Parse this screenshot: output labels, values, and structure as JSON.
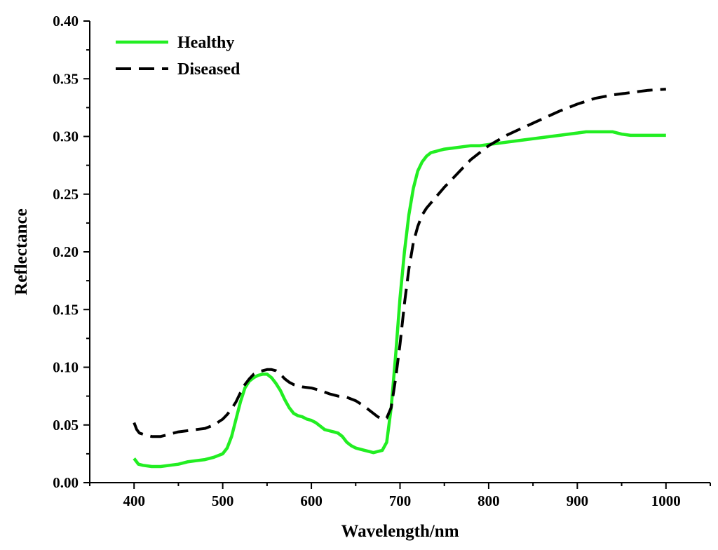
{
  "chart_data": {
    "type": "line",
    "xlabel": "Wavelength/nm",
    "ylabel": "Reflectance",
    "xlim": [
      350,
      1050
    ],
    "ylim": [
      0.0,
      0.4
    ],
    "xticks": [
      400,
      500,
      600,
      700,
      800,
      900,
      1000
    ],
    "yticks": [
      0.0,
      0.05,
      0.1,
      0.15,
      0.2,
      0.25,
      0.3,
      0.35,
      0.4
    ],
    "xtick_labels": [
      "400",
      "500",
      "600",
      "700",
      "800",
      "900",
      "1000"
    ],
    "ytick_labels": [
      "0.00",
      "0.05",
      "0.10",
      "0.15",
      "0.20",
      "0.25",
      "0.30",
      "0.35",
      "0.40"
    ],
    "grid": false,
    "legend_position": "top-left",
    "series": [
      {
        "name": "Healthy",
        "color": "#22ee22",
        "style": "solid",
        "x": [
          400,
          405,
          410,
          420,
          430,
          440,
          450,
          460,
          470,
          480,
          490,
          500,
          505,
          510,
          515,
          520,
          525,
          530,
          535,
          540,
          545,
          550,
          555,
          560,
          565,
          570,
          575,
          580,
          585,
          590,
          595,
          600,
          605,
          610,
          615,
          620,
          625,
          630,
          635,
          640,
          645,
          650,
          655,
          660,
          665,
          670,
          675,
          680,
          685,
          690,
          695,
          700,
          705,
          710,
          715,
          720,
          725,
          730,
          735,
          740,
          745,
          750,
          760,
          770,
          780,
          790,
          800,
          820,
          840,
          860,
          880,
          900,
          910,
          920,
          930,
          940,
          950,
          960,
          970,
          980,
          990,
          1000
        ],
        "y": [
          0.021,
          0.016,
          0.015,
          0.014,
          0.014,
          0.015,
          0.016,
          0.018,
          0.019,
          0.02,
          0.022,
          0.025,
          0.03,
          0.04,
          0.055,
          0.07,
          0.082,
          0.088,
          0.091,
          0.093,
          0.094,
          0.094,
          0.091,
          0.086,
          0.08,
          0.072,
          0.065,
          0.06,
          0.058,
          0.057,
          0.055,
          0.054,
          0.052,
          0.049,
          0.046,
          0.045,
          0.044,
          0.043,
          0.04,
          0.035,
          0.032,
          0.03,
          0.029,
          0.028,
          0.027,
          0.026,
          0.027,
          0.028,
          0.035,
          0.065,
          0.11,
          0.16,
          0.2,
          0.232,
          0.255,
          0.27,
          0.278,
          0.283,
          0.286,
          0.287,
          0.288,
          0.289,
          0.29,
          0.291,
          0.292,
          0.292,
          0.293,
          0.295,
          0.297,
          0.299,
          0.301,
          0.303,
          0.304,
          0.304,
          0.304,
          0.304,
          0.302,
          0.301,
          0.301,
          0.301,
          0.301,
          0.301
        ]
      },
      {
        "name": "Diseased",
        "color": "#000000",
        "style": "dashed",
        "x": [
          400,
          403,
          406,
          410,
          415,
          420,
          430,
          440,
          450,
          460,
          470,
          480,
          490,
          500,
          505,
          510,
          515,
          520,
          525,
          530,
          535,
          540,
          545,
          550,
          555,
          560,
          565,
          570,
          575,
          580,
          590,
          600,
          610,
          620,
          630,
          640,
          650,
          660,
          670,
          675,
          680,
          685,
          690,
          695,
          700,
          705,
          710,
          715,
          720,
          725,
          730,
          740,
          750,
          760,
          780,
          800,
          820,
          840,
          860,
          880,
          900,
          920,
          940,
          960,
          980,
          1000
        ],
        "y": [
          0.052,
          0.046,
          0.043,
          0.042,
          0.041,
          0.04,
          0.04,
          0.042,
          0.044,
          0.045,
          0.046,
          0.047,
          0.05,
          0.055,
          0.059,
          0.064,
          0.07,
          0.078,
          0.085,
          0.09,
          0.094,
          0.096,
          0.097,
          0.098,
          0.098,
          0.097,
          0.094,
          0.09,
          0.087,
          0.085,
          0.083,
          0.082,
          0.08,
          0.077,
          0.075,
          0.074,
          0.071,
          0.066,
          0.06,
          0.057,
          0.055,
          0.056,
          0.065,
          0.09,
          0.12,
          0.155,
          0.185,
          0.208,
          0.222,
          0.232,
          0.238,
          0.247,
          0.256,
          0.264,
          0.28,
          0.292,
          0.301,
          0.308,
          0.315,
          0.322,
          0.328,
          0.333,
          0.336,
          0.338,
          0.34,
          0.341
        ]
      }
    ]
  }
}
